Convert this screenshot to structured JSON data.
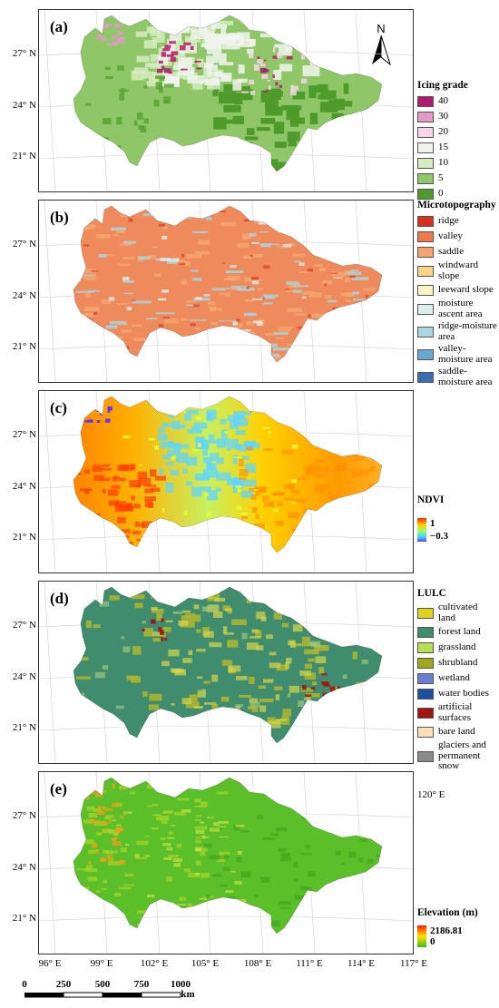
{
  "panels": [
    {
      "label": "(a)"
    },
    {
      "label": "(b)"
    },
    {
      "label": "(c)"
    },
    {
      "label": "(d)"
    },
    {
      "label": "(e)"
    }
  ],
  "lat_labels": [
    "27° N",
    "24° N",
    "21° N"
  ],
  "lon_labels": [
    "96° E",
    "99° E",
    "102° E",
    "105° E",
    "108° E",
    "111° E",
    "114° E",
    "117° E"
  ],
  "extra_lon_label": "120° E",
  "north_arrow": "N",
  "legend_a": {
    "title": "Icing grade",
    "items": [
      {
        "label": "40",
        "color": "#b5166e"
      },
      {
        "label": "30",
        "color": "#e39ac4"
      },
      {
        "label": "20",
        "color": "#f6d6e8"
      },
      {
        "label": "15",
        "color": "#f1f3ee"
      },
      {
        "label": "10",
        "color": "#d5ecc0"
      },
      {
        "label": "5",
        "color": "#8fc768"
      },
      {
        "label": "0",
        "color": "#4e9a2b"
      }
    ]
  },
  "legend_b": {
    "title": "Microtopography",
    "items": [
      {
        "label": "ridge",
        "color": "#d7301f"
      },
      {
        "label": "valley",
        "color": "#ee7a4c"
      },
      {
        "label": "saddle",
        "color": "#f4a66e"
      },
      {
        "label": "windward slope",
        "color": "#f9d48a"
      },
      {
        "label": "leeward slope",
        "color": "#fbf6c8"
      },
      {
        "label": "moisture ascent area",
        "color": "#dcefee"
      },
      {
        "label": "ridge-moisture area",
        "color": "#a9d6e1"
      },
      {
        "label": "valley-moisture area",
        "color": "#6aa8cf"
      },
      {
        "label": "saddle-moisture area",
        "color": "#3b6db4"
      }
    ]
  },
  "legend_c": {
    "title": "NDVI",
    "max_label": "1",
    "min_label": "−0.3"
  },
  "legend_d": {
    "title": "LULC",
    "items": [
      {
        "label": "cultivated land",
        "color": "#e3d21a"
      },
      {
        "label": "forest land",
        "color": "#3f8d6e"
      },
      {
        "label": "grassland",
        "color": "#b8df4e"
      },
      {
        "label": "shrubland",
        "color": "#9da61c"
      },
      {
        "label": "wetland",
        "color": "#6a7fd0"
      },
      {
        "label": "water bodies",
        "color": "#1d4ea0"
      },
      {
        "label": "artificial surfaces",
        "color": "#a3140f"
      },
      {
        "label": "bare land",
        "color": "#f8e1b8"
      },
      {
        "label": "glaciers and permanent snow",
        "color": "#8a8a8a"
      }
    ]
  },
  "legend_e": {
    "title": "Elevation (m)",
    "max_label": "2186.81",
    "min_label": "0"
  },
  "scale_bar": {
    "ticks": [
      "0",
      "250",
      "500",
      "750",
      "1000"
    ],
    "unit": "km"
  }
}
